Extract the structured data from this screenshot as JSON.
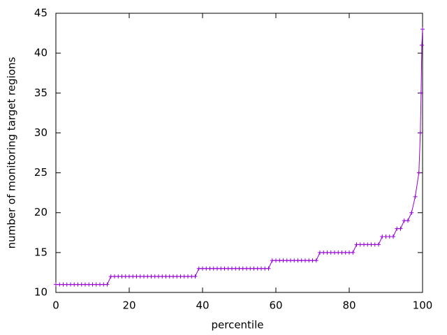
{
  "chart_data": {
    "type": "line",
    "xlabel": "percentile",
    "ylabel": "number of monitoring target regions",
    "x": [
      0,
      1,
      2,
      3,
      4,
      5,
      6,
      7,
      8,
      9,
      10,
      11,
      12,
      13,
      14,
      15,
      16,
      17,
      18,
      19,
      20,
      21,
      22,
      23,
      24,
      25,
      26,
      27,
      28,
      29,
      30,
      31,
      32,
      33,
      34,
      35,
      36,
      37,
      38,
      39,
      40,
      41,
      42,
      43,
      44,
      45,
      46,
      47,
      48,
      49,
      50,
      51,
      52,
      53,
      54,
      55,
      56,
      57,
      58,
      59,
      60,
      61,
      62,
      63,
      64,
      65,
      66,
      67,
      68,
      69,
      70,
      71,
      72,
      73,
      74,
      75,
      76,
      77,
      78,
      79,
      80,
      81,
      82,
      83,
      84,
      85,
      86,
      87,
      88,
      89,
      90,
      91,
      92,
      93,
      94,
      95,
      96,
      97,
      98,
      99,
      99.4,
      99.6,
      99.8,
      100
    ],
    "series": [
      {
        "color": "#9400d3",
        "values": [
          11,
          11,
          11,
          11,
          11,
          11,
          11,
          11,
          11,
          11,
          11,
          11,
          11,
          11,
          11,
          12,
          12,
          12,
          12,
          12,
          12,
          12,
          12,
          12,
          12,
          12,
          12,
          12,
          12,
          12,
          12,
          12,
          12,
          12,
          12,
          12,
          12,
          12,
          12,
          13,
          13,
          13,
          13,
          13,
          13,
          13,
          13,
          13,
          13,
          13,
          13,
          13,
          13,
          13,
          13,
          13,
          13,
          13,
          13,
          14,
          14,
          14,
          14,
          14,
          14,
          14,
          14,
          14,
          14,
          14,
          14,
          14,
          15,
          15,
          15,
          15,
          15,
          15,
          15,
          15,
          15,
          15,
          16,
          16,
          16,
          16,
          16,
          16,
          16,
          17,
          17,
          17,
          17,
          18,
          18,
          19,
          19,
          20,
          22,
          25,
          30,
          35,
          41,
          43
        ]
      }
    ],
    "xlim": [
      0,
      100
    ],
    "xticks": [
      0,
      20,
      40,
      60,
      80,
      100
    ],
    "ylim": [
      10,
      45
    ],
    "yticks": [
      10,
      15,
      20,
      25,
      30,
      35,
      40,
      45
    ]
  }
}
